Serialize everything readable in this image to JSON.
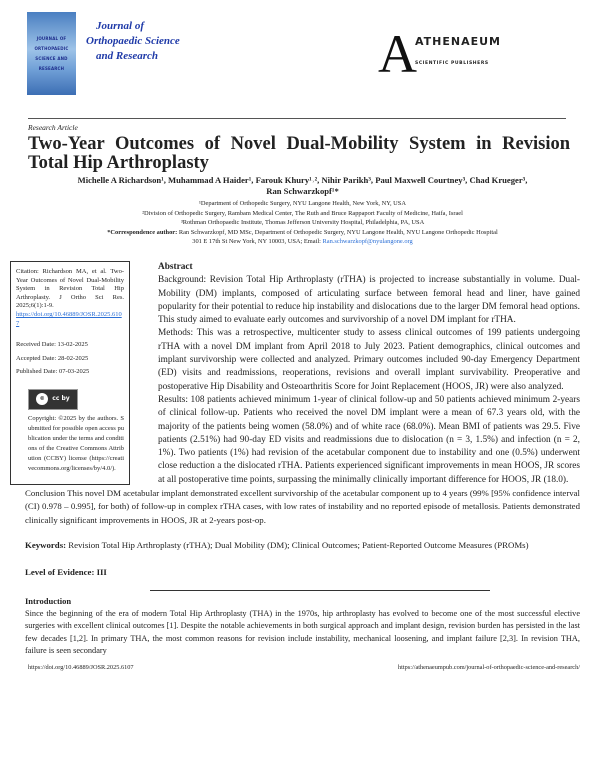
{
  "header": {
    "cover_text": [
      "JOURNAL OF",
      "ORTHOPAEDIC",
      "SCIENCE AND",
      "RESEARCH"
    ],
    "journal_name": [
      "Journal of",
      "Orthopaedic Science",
      "and Research"
    ],
    "publisher_name": "ATHENAEUM",
    "publisher_sub": "SCIENTIFIC PUBLISHERS",
    "publisher_mark": "A"
  },
  "article_type": "Research Article",
  "title": "Two-Year Outcomes of Novel Dual-Mobility System in Revision Total Hip Arthroplasty",
  "authors_line1": "Michelle A Richardson¹, Muhammad A Haider¹, Farouk Khury¹˒², Nihir Parikh³, Paul Maxwell Courtney³, Chad Krueger³,",
  "authors_line2": "Ran Schwarzkopf¹*",
  "affiliations": [
    "¹Department of Orthopedic Surgery, NYU Langone Health, New York, NY, USA",
    "²Division of Orthopedic Surgery, Rambam Medical Center, The Ruth and Bruce Rappaport Faculty of Medicine, Haifa, Israel",
    "³Rothman Orthopaedic Institute, Thomas Jefferson University Hospital, Philadelphia, PA, USA"
  ],
  "correspondence": {
    "label": "*Correspondence author:",
    "text": " Ran Schwarzkopf, MD MSc, Department of Orthopedic Surgery, NYU Langone Health, NYU Langone Orthopedic Hospital",
    "address": "301 E 17th St New York, NY 10003, USA; Email: ",
    "email": "Ran.schwarzkopf@nyulangone.org"
  },
  "sidebar": {
    "citation": "Citation: Richardson MA, et al. Two-Year Outcomes of Novel Dual-Mobility System in Revision Total Hip Arthroplasty. J Ortho Sci Res. 2025;6(1):1-9.",
    "doi": "https://doi.org/10.46889/JOSR.2025.6107",
    "received": "Received Date: 13-02-2025",
    "accepted": "Accepted Date: 28-02-2025",
    "published": "Published Date: 07-03-2025",
    "license_badge": "cc by",
    "copyright": "Copyright: ©2025 by the authors. Submitted for possible open access publication under the terms and conditions of the Creative Commons Attribution (CCBY) license (https://creativecommons.org/licenses/by/4.0/)."
  },
  "abstract": {
    "heading": "Abstract",
    "background": "Background: Revision Total Hip Arthroplasty (rTHA) is projected to increase substantially in volume. Dual-Mobility (DM) implants, composed of articulating surface between femoral head and liner, have gained popularity for their potential to reduce hip instability and dislocations due to the larger DM femoral head options. This study aimed to evaluate early outcomes and survivorship of a novel DM implant for rTHA.",
    "methods": "Methods: This was a retrospective, multicenter study to assess clinical outcomes of 199 patients undergoing rTHA with a novel DM implant from April 2018 to July 2023. Patient demographics, clinical outcomes and implant survivorship were collected and analyzed. Primary outcomes included 90-day Emergency Department (ED) visits and readmissions, reoperations, revisions and overall implant survivability. Preoperative and postoperative Hip Disability and Osteoarthritis Score for Joint Replacement (HOOS, JR) were also analyzed.",
    "results": "Results: 108 patients achieved minimum 1-year of clinical follow-up and 50 patients achieved minimum 2-years of clinical follow-up. Patients who received the novel DM implant were a mean of 67.3 years old, with the majority of the patients being women (58.0%) and of white race (68.0%). Mean BMI of patients was 29.5. Five patients (2.51%) had 90-day ED visits and readmissions due to dislocation (n = 3, 1.5%) and infection (n = 2, 1%). Two patients (1%) had revision of the acetabular component due to instability and one (0.5%) underwent close reduction a the dislocated rTHA. Patients experienced significant improvements in mean HOOS, JR scores at all postoperative time points, surpassing the minimally clinically important difference for HOOS, JR (18.0).",
    "conclusion": "Conclusion This novel DM acetabular implant demonstrated excellent survivorship of the acetabular component up to 4 years (99% [95% confidence interval (CI) 0.978 – 0.995], for both) of follow-up in complex rTHA cases, with low rates of instability and no reported episode of metallosis. Patients demonstrated clinically significant improvements in HOOS, JR at 2-years post-op."
  },
  "keywords": {
    "label": "Keywords:",
    "text": " Revision Total Hip Arthroplasty (rTHA); Dual Mobility (DM); Clinical Outcomes; Patient-Reported Outcome Measures (PROMs)"
  },
  "level_of_evidence": "Level of Evidence: III",
  "introduction": {
    "heading": "Introduction",
    "text": "Since the beginning of the era of modern Total Hip Arthroplasty (THA) in the 1970s, hip arthroplasty has evolved to become one of the most successful elective surgeries with excellent clinical outcomes [1]. Despite the notable achievements in both surgical approach and implant design, revision burden has persisted in the last few decades [1,2]. In primary THA, the most common reasons for revision include instability, mechanical loosening, and implant failure [2,3]. In revision THA, failure is seen secondary"
  },
  "footer": {
    "left": "https://doi.org/10.46889/JOSR.2025.6107",
    "right": "https://athenaeumpub.com/journal-of-orthopaedic-science-and-research/"
  }
}
